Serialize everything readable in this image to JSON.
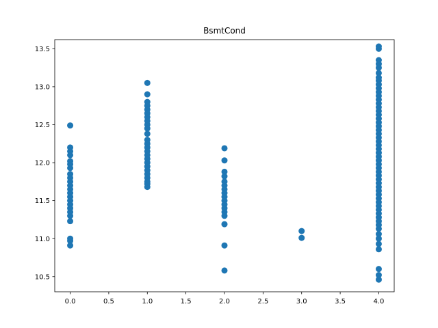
{
  "chart_data": {
    "type": "scatter",
    "title": "BsmtCond",
    "xlabel": "",
    "ylabel": "",
    "xlim": [
      -0.2,
      4.2
    ],
    "ylim": [
      10.3,
      13.62
    ],
    "xticks": [
      0.0,
      0.5,
      1.0,
      1.5,
      2.0,
      2.5,
      3.0,
      3.5,
      4.0
    ],
    "xtick_labels": [
      "0.0",
      "0.5",
      "1.0",
      "1.5",
      "2.0",
      "2.5",
      "3.0",
      "3.5",
      "4.0"
    ],
    "yticks": [
      10.5,
      11.0,
      11.5,
      12.0,
      12.5,
      13.0,
      13.5
    ],
    "ytick_labels": [
      "10.5",
      "11.0",
      "11.5",
      "12.0",
      "12.5",
      "13.0",
      "13.5"
    ],
    "grid": false,
    "marker_color": "#1f77b4",
    "series": [
      {
        "points": [
          [
            0,
            12.49
          ],
          [
            0,
            12.2
          ],
          [
            0,
            12.15
          ],
          [
            0,
            12.1
          ],
          [
            0,
            12.02
          ],
          [
            0,
            11.98
          ],
          [
            0,
            11.93
          ],
          [
            0,
            11.85
          ],
          [
            0,
            11.8
          ],
          [
            0,
            11.75
          ],
          [
            0,
            11.7
          ],
          [
            0,
            11.65
          ],
          [
            0,
            11.6
          ],
          [
            0,
            11.55
          ],
          [
            0,
            11.5
          ],
          [
            0,
            11.45
          ],
          [
            0,
            11.4
          ],
          [
            0,
            11.35
          ],
          [
            0,
            11.3
          ],
          [
            0,
            11.23
          ],
          [
            0,
            11.0
          ],
          [
            0,
            10.97
          ],
          [
            0,
            10.91
          ],
          [
            1,
            13.05
          ],
          [
            1,
            12.9
          ],
          [
            1,
            12.8
          ],
          [
            1,
            12.75
          ],
          [
            1,
            12.7
          ],
          [
            1,
            12.65
          ],
          [
            1,
            12.6
          ],
          [
            1,
            12.55
          ],
          [
            1,
            12.5
          ],
          [
            1,
            12.45
          ],
          [
            1,
            12.38
          ],
          [
            1,
            12.3
          ],
          [
            1,
            12.25
          ],
          [
            1,
            12.2
          ],
          [
            1,
            12.15
          ],
          [
            1,
            12.1
          ],
          [
            1,
            12.05
          ],
          [
            1,
            12.0
          ],
          [
            1,
            11.95
          ],
          [
            1,
            11.9
          ],
          [
            1,
            11.85
          ],
          [
            1,
            11.8
          ],
          [
            1,
            11.75
          ],
          [
            1,
            11.72
          ],
          [
            1,
            11.68
          ],
          [
            2,
            12.19
          ],
          [
            2,
            12.03
          ],
          [
            2,
            11.88
          ],
          [
            2,
            11.82
          ],
          [
            2,
            11.75
          ],
          [
            2,
            11.7
          ],
          [
            2,
            11.65
          ],
          [
            2,
            11.6
          ],
          [
            2,
            11.55
          ],
          [
            2,
            11.5
          ],
          [
            2,
            11.45
          ],
          [
            2,
            11.4
          ],
          [
            2,
            11.35
          ],
          [
            2,
            11.3
          ],
          [
            2,
            11.19
          ],
          [
            2,
            10.91
          ],
          [
            2,
            10.58
          ],
          [
            3,
            11.1
          ],
          [
            3,
            11.01
          ],
          [
            4,
            13.53
          ],
          [
            4,
            13.5
          ],
          [
            4,
            13.35
          ],
          [
            4,
            13.3
          ],
          [
            4,
            13.25
          ],
          [
            4,
            13.18
          ],
          [
            4,
            13.12
          ],
          [
            4,
            13.08
          ],
          [
            4,
            13.03
          ],
          [
            4,
            12.98
          ],
          [
            4,
            12.93
          ],
          [
            4,
            12.88
          ],
          [
            4,
            12.83
          ],
          [
            4,
            12.78
          ],
          [
            4,
            12.73
          ],
          [
            4,
            12.68
          ],
          [
            4,
            12.63
          ],
          [
            4,
            12.58
          ],
          [
            4,
            12.53
          ],
          [
            4,
            12.48
          ],
          [
            4,
            12.43
          ],
          [
            4,
            12.38
          ],
          [
            4,
            12.33
          ],
          [
            4,
            12.28
          ],
          [
            4,
            12.23
          ],
          [
            4,
            12.18
          ],
          [
            4,
            12.13
          ],
          [
            4,
            12.08
          ],
          [
            4,
            12.03
          ],
          [
            4,
            11.98
          ],
          [
            4,
            11.93
          ],
          [
            4,
            11.88
          ],
          [
            4,
            11.83
          ],
          [
            4,
            11.78
          ],
          [
            4,
            11.73
          ],
          [
            4,
            11.68
          ],
          [
            4,
            11.63
          ],
          [
            4,
            11.58
          ],
          [
            4,
            11.53
          ],
          [
            4,
            11.48
          ],
          [
            4,
            11.43
          ],
          [
            4,
            11.38
          ],
          [
            4,
            11.33
          ],
          [
            4,
            11.28
          ],
          [
            4,
            11.23
          ],
          [
            4,
            11.18
          ],
          [
            4,
            11.13
          ],
          [
            4,
            11.06
          ],
          [
            4,
            11.0
          ],
          [
            4,
            10.93
          ],
          [
            4,
            10.86
          ],
          [
            4,
            10.6
          ],
          [
            4,
            10.52
          ],
          [
            4,
            10.46
          ]
        ]
      }
    ]
  }
}
